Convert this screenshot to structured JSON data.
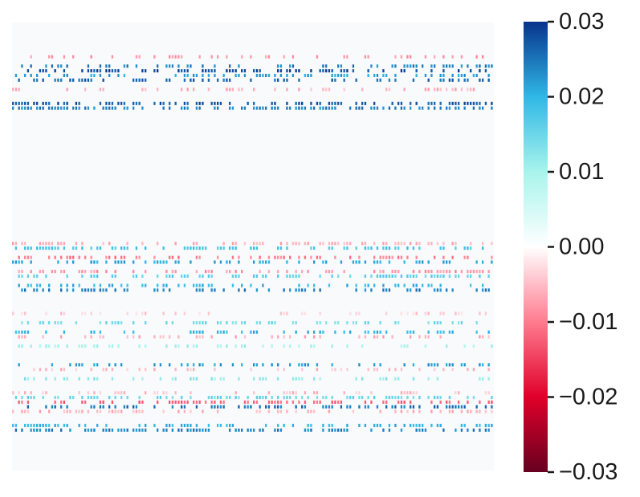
{
  "chart_data": {
    "type": "heatmap",
    "title": "",
    "xlabel": "",
    "ylabel": "",
    "n_rows": 96,
    "n_cols": 160,
    "background_value": 0.0,
    "colorbar": {
      "vmin": -0.03,
      "vmax": 0.03,
      "colormap": "diverging red-white-blue",
      "colors": [
        "#67001f",
        "#e0002a",
        "#ff7b8f",
        "#ffffff",
        "#a8f4ec",
        "#2fb8e6",
        "#08338c"
      ],
      "ticks": [
        {
          "value": 0.03,
          "label": "0.03"
        },
        {
          "value": 0.02,
          "label": "0.02"
        },
        {
          "value": 0.01,
          "label": "0.01"
        },
        {
          "value": 0.0,
          "label": "0.00"
        },
        {
          "value": -0.01,
          "label": "−0.01"
        },
        {
          "value": -0.02,
          "label": "−0.02"
        },
        {
          "value": -0.03,
          "label": "−0.03"
        }
      ]
    },
    "column_groups": [
      {
        "start": 0,
        "end": 12
      },
      {
        "start": 13,
        "end": 25
      },
      {
        "start": 26,
        "end": 38
      },
      {
        "start": 40,
        "end": 44
      },
      {
        "start": 47,
        "end": 59
      },
      {
        "start": 60,
        "end": 72
      },
      {
        "start": 73,
        "end": 85
      },
      {
        "start": 86,
        "end": 98
      },
      {
        "start": 99,
        "end": 111
      },
      {
        "start": 112,
        "end": 124
      },
      {
        "start": 125,
        "end": 137
      },
      {
        "start": 138,
        "end": 147
      },
      {
        "start": 148,
        "end": 159
      }
    ],
    "active_rows": [
      {
        "row": 7,
        "value": -0.008,
        "density": 0.3
      },
      {
        "row": 9,
        "value": 0.024,
        "density": 0.4
      },
      {
        "row": 10,
        "value": 0.028,
        "density": 0.45
      },
      {
        "row": 11,
        "value": 0.022,
        "density": 0.35
      },
      {
        "row": 12,
        "value": 0.026,
        "density": 0.4
      },
      {
        "row": 14,
        "value": -0.006,
        "density": 0.25
      },
      {
        "row": 17,
        "value": 0.027,
        "density": 0.55
      },
      {
        "row": 18,
        "value": 0.024,
        "density": 0.6
      },
      {
        "row": 47,
        "value": -0.006,
        "density": 0.45
      },
      {
        "row": 48,
        "value": 0.018,
        "density": 0.45
      },
      {
        "row": 50,
        "value": -0.01,
        "density": 0.4
      },
      {
        "row": 51,
        "value": 0.021,
        "density": 0.4
      },
      {
        "row": 53,
        "value": -0.008,
        "density": 0.45
      },
      {
        "row": 54,
        "value": 0.016,
        "density": 0.45
      },
      {
        "row": 56,
        "value": 0.02,
        "density": 0.35
      },
      {
        "row": 57,
        "value": 0.024,
        "density": 0.35
      },
      {
        "row": 62,
        "value": -0.004,
        "density": 0.25
      },
      {
        "row": 64,
        "value": 0.014,
        "density": 0.3
      },
      {
        "row": 66,
        "value": 0.02,
        "density": 0.3
      },
      {
        "row": 67,
        "value": -0.006,
        "density": 0.25
      },
      {
        "row": 69,
        "value": 0.01,
        "density": 0.3
      },
      {
        "row": 73,
        "value": 0.022,
        "density": 0.35
      },
      {
        "row": 74,
        "value": -0.005,
        "density": 0.3
      },
      {
        "row": 76,
        "value": 0.012,
        "density": 0.3
      },
      {
        "row": 79,
        "value": -0.005,
        "density": 0.25
      },
      {
        "row": 80,
        "value": 0.015,
        "density": 0.45
      },
      {
        "row": 81,
        "value": -0.012,
        "density": 0.45
      },
      {
        "row": 82,
        "value": 0.025,
        "density": 0.4
      },
      {
        "row": 83,
        "value": -0.006,
        "density": 0.35
      },
      {
        "row": 86,
        "value": 0.02,
        "density": 0.4
      },
      {
        "row": 87,
        "value": 0.024,
        "density": 0.45
      }
    ]
  }
}
